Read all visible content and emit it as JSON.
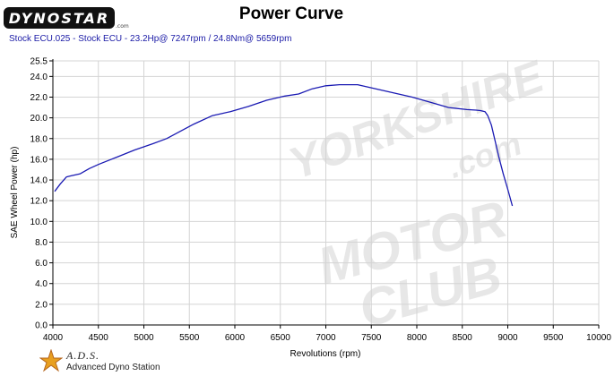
{
  "header": {
    "logo_text": "DYNOSTAR",
    "logo_url": ".com",
    "title": "Power Curve",
    "subtitle": "Stock ECU.025 - Stock ECU   - 23.2Hp@ 7247rpm / 24.8Nm@ 5659rpm"
  },
  "watermark": {
    "line1": "YORKSHIRE",
    "line2": ".com",
    "line3": "MOTOR",
    "line4": "CLUB"
  },
  "footer": {
    "brand_name": "A.D.S.",
    "brand_tagline": "Advanced Dyno Station"
  },
  "colors": {
    "curve": "#1a1ab3",
    "subtitle": "#1a1aa6",
    "grid": "#d4d4d4"
  },
  "chart_data": {
    "type": "line",
    "title": "Power Curve",
    "xlabel": "Revolutions (rpm)",
    "ylabel": "SAE Wheel Power (hp)",
    "xlim": [
      4000,
      10000
    ],
    "ylim": [
      0,
      25.5
    ],
    "xticks": [
      4000,
      4500,
      5000,
      5500,
      6000,
      6500,
      7000,
      7500,
      8000,
      8500,
      9000,
      9500,
      10000
    ],
    "yticks": [
      0.0,
      2.0,
      4.0,
      6.0,
      8.0,
      10.0,
      12.0,
      14.0,
      16.0,
      18.0,
      20.0,
      22.0,
      24.0,
      25.5
    ],
    "ytick_labels": [
      "0.0",
      "2.0",
      "4.0",
      "6.0",
      "8.0",
      "10.0",
      "12.0",
      "14.0",
      "16.0",
      "18.0",
      "20.0",
      "22.0",
      "24.0",
      "25.5"
    ],
    "grid": true,
    "series": [
      {
        "color": "#1a1ab3",
        "x": [
          4020,
          4080,
          4150,
          4200,
          4300,
          4400,
          4500,
          4700,
          4900,
          5100,
          5250,
          5400,
          5550,
          5750,
          5950,
          6150,
          6350,
          6550,
          6700,
          6850,
          7000,
          7150,
          7350,
          7550,
          7750,
          7950,
          8150,
          8350,
          8550,
          8650,
          8700,
          8750,
          8780,
          8820,
          8860,
          8900,
          8950,
          9000,
          9050
        ],
        "y": [
          12.9,
          13.6,
          14.3,
          14.4,
          14.6,
          15.1,
          15.5,
          16.2,
          16.9,
          17.5,
          18.0,
          18.7,
          19.4,
          20.2,
          20.6,
          21.1,
          21.7,
          22.1,
          22.3,
          22.8,
          23.1,
          23.2,
          23.2,
          22.8,
          22.4,
          22.0,
          21.5,
          21.0,
          20.8,
          20.75,
          20.7,
          20.6,
          20.2,
          19.3,
          17.8,
          16.3,
          14.6,
          13.1,
          11.5
        ]
      }
    ]
  }
}
